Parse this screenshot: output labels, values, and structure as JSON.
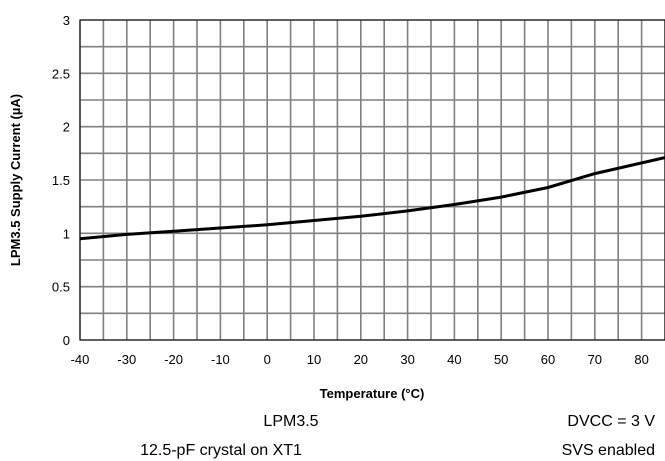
{
  "chart_data": {
    "type": "line",
    "title": "",
    "xlabel": "Temperature (°C)",
    "ylabel": "LPM3.5 Supply Current (µA)",
    "xlim": [
      -40,
      85
    ],
    "ylim": [
      0,
      3
    ],
    "x_ticks": [
      -40,
      -30,
      -20,
      -10,
      0,
      10,
      20,
      30,
      40,
      50,
      60,
      70,
      80
    ],
    "y_ticks": [
      0,
      0.5,
      1,
      1.5,
      2,
      2.5,
      3
    ],
    "x_minor_step": 5,
    "y_minor_step": 0.25,
    "grid": true,
    "legend": "none",
    "series": [
      {
        "color": "#000000",
        "x": [
          -40,
          -30,
          -20,
          -10,
          0,
          10,
          20,
          30,
          40,
          50,
          60,
          70,
          85
        ],
        "y": [
          0.95,
          0.99,
          1.02,
          1.05,
          1.08,
          1.12,
          1.16,
          1.21,
          1.27,
          1.34,
          1.43,
          1.56,
          1.71
        ]
      }
    ],
    "annotations": [
      {
        "id": "mode",
        "text": "LPM3.5"
      },
      {
        "id": "supply",
        "text": "DVCC = 3 V"
      },
      {
        "id": "crystal",
        "text": "12.5-pF crystal on XT1"
      },
      {
        "id": "svs",
        "text": "SVS enabled"
      }
    ]
  }
}
